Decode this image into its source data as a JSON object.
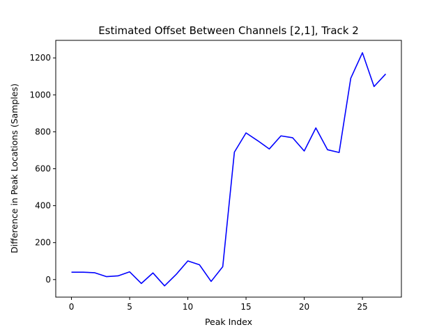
{
  "chart_data": {
    "type": "line",
    "title": "Estimated Offset Between Channels [2,1], Track 2",
    "xlabel": "Peak Index",
    "ylabel": "Difference in Peak Locations (Samples)",
    "xlim": [
      -1.35,
      28.35
    ],
    "ylim": [
      -95,
      1295
    ],
    "xticks": [
      0,
      5,
      10,
      15,
      20,
      25
    ],
    "yticks": [
      0,
      200,
      400,
      600,
      800,
      1000,
      1200
    ],
    "grid": false,
    "series": [
      {
        "color": "#0000ff",
        "x": [
          0,
          1,
          2,
          3,
          4,
          5,
          6,
          7,
          8,
          9,
          10,
          11,
          12,
          13,
          14,
          15,
          16,
          17,
          18,
          19,
          20,
          21,
          22,
          23,
          24,
          25,
          26,
          27
        ],
        "values": [
          40,
          40,
          37,
          16,
          20,
          42,
          -21,
          36,
          -34,
          28,
          101,
          80,
          -10,
          70,
          690,
          794,
          752,
          707,
          778,
          768,
          696,
          821,
          703,
          688,
          1090,
          1228,
          1045,
          1113
        ]
      }
    ]
  }
}
